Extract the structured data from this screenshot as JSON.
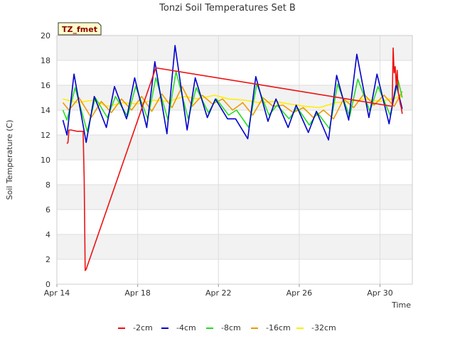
{
  "chart_data": {
    "type": "line",
    "title": "Tonzi Soil Temperatures Set B",
    "xlabel": "Time",
    "ylabel": "Soil Temperature (C)",
    "badge": "TZ_fmet",
    "xlim": [
      14,
      31.6
    ],
    "ylim": [
      0,
      20
    ],
    "x_ticks": [
      14,
      18,
      22,
      26,
      30
    ],
    "x_tick_labels": [
      "Apr 14",
      "Apr 18",
      "Apr 22",
      "Apr 26",
      "Apr 30"
    ],
    "y_ticks": [
      0,
      2,
      4,
      6,
      8,
      10,
      12,
      14,
      16,
      18,
      20
    ],
    "grid": true,
    "legend_position": "bottom",
    "series": [
      {
        "name": "-2cm",
        "color": "#ee1111",
        "x": [
          14.5,
          14.55,
          14.6,
          14.7,
          15.0,
          15.3,
          15.35,
          15.4,
          15.45,
          18.9,
          29.5,
          30.6,
          30.65,
          30.7,
          30.75,
          30.8,
          30.85,
          30.9,
          30.95,
          31.0,
          31.05,
          31.1
        ],
        "y": [
          11.3,
          11.4,
          12.4,
          12.4,
          12.3,
          12.3,
          8.5,
          1.1,
          1.2,
          17.4,
          14.6,
          14.3,
          19.0,
          17.0,
          17.5,
          16.0,
          17.2,
          15.5,
          15.0,
          14.5,
          14.2,
          13.7
        ]
      },
      {
        "name": "-4cm",
        "color": "#0000cc",
        "x": [
          14.3,
          14.5,
          14.85,
          15.45,
          15.85,
          16.45,
          16.85,
          17.45,
          17.85,
          18.45,
          18.85,
          19.45,
          19.85,
          20.45,
          20.85,
          21.45,
          21.85,
          22.45,
          22.85,
          23.45,
          23.85,
          24.45,
          24.85,
          25.45,
          25.85,
          26.45,
          26.85,
          27.45,
          27.85,
          28.45,
          28.85,
          29.45,
          29.85,
          30.45,
          30.8,
          31.1
        ],
        "y": [
          13.2,
          12.0,
          16.9,
          11.4,
          15.1,
          12.6,
          15.9,
          13.3,
          16.6,
          12.6,
          17.9,
          12.1,
          19.2,
          12.4,
          16.6,
          13.4,
          14.9,
          13.3,
          13.3,
          11.7,
          16.7,
          13.1,
          14.9,
          12.6,
          14.4,
          12.2,
          13.9,
          11.6,
          16.8,
          13.2,
          18.5,
          13.4,
          16.9,
          12.9,
          16.1,
          14.1
        ]
      },
      {
        "name": "-8cm",
        "color": "#22dd22",
        "x": [
          14.3,
          14.5,
          14.9,
          15.5,
          15.9,
          16.5,
          16.9,
          17.5,
          17.9,
          18.5,
          18.9,
          19.5,
          19.9,
          20.5,
          20.9,
          21.5,
          21.9,
          22.5,
          22.9,
          23.5,
          23.9,
          24.5,
          24.9,
          25.5,
          25.9,
          26.5,
          26.9,
          27.5,
          27.9,
          28.5,
          28.9,
          29.5,
          29.9,
          30.5,
          30.9,
          31.1
        ],
        "y": [
          14.0,
          13.2,
          15.8,
          12.3,
          15.0,
          13.4,
          15.1,
          13.5,
          15.9,
          13.3,
          16.6,
          13.2,
          17.1,
          13.3,
          15.8,
          13.8,
          14.9,
          13.6,
          14.0,
          12.6,
          16.1,
          13.6,
          14.4,
          13.3,
          14.2,
          12.8,
          13.8,
          12.5,
          16.1,
          13.5,
          16.5,
          13.9,
          15.9,
          13.6,
          16.4,
          15.0
        ]
      },
      {
        "name": "-16cm",
        "color": "#ee9900",
        "x": [
          14.3,
          14.6,
          15.1,
          15.7,
          16.2,
          16.7,
          17.2,
          17.7,
          18.2,
          18.7,
          19.2,
          19.7,
          20.2,
          20.7,
          21.2,
          21.7,
          22.2,
          22.7,
          23.2,
          23.7,
          24.2,
          24.7,
          25.2,
          25.7,
          26.2,
          26.7,
          27.2,
          27.7,
          28.2,
          28.7,
          29.2,
          29.7,
          30.2,
          30.7,
          31.1
        ],
        "y": [
          14.6,
          14.0,
          15.0,
          13.4,
          14.7,
          13.8,
          14.9,
          14.0,
          15.1,
          13.9,
          15.3,
          14.2,
          15.9,
          14.3,
          15.2,
          14.5,
          14.9,
          14.0,
          14.6,
          13.6,
          15.0,
          14.3,
          14.4,
          13.8,
          14.2,
          13.4,
          14.0,
          13.3,
          14.9,
          14.2,
          15.3,
          14.4,
          15.2,
          14.3,
          15.5
        ]
      },
      {
        "name": "-32cm",
        "color": "#ffee00",
        "x": [
          14.3,
          15.0,
          15.8,
          16.5,
          17.3,
          18.0,
          18.8,
          19.5,
          20.3,
          21.0,
          21.8,
          22.5,
          23.3,
          24.0,
          24.8,
          25.5,
          26.3,
          27.0,
          27.8,
          28.5,
          29.3,
          30.0,
          30.8,
          31.1
        ],
        "y": [
          14.9,
          14.6,
          14.8,
          14.3,
          14.6,
          14.5,
          14.8,
          14.7,
          15.1,
          14.9,
          15.2,
          14.9,
          14.8,
          14.6,
          14.7,
          14.5,
          14.3,
          14.2,
          14.6,
          14.7,
          14.9,
          14.7,
          15.0,
          15.1
        ]
      }
    ]
  }
}
